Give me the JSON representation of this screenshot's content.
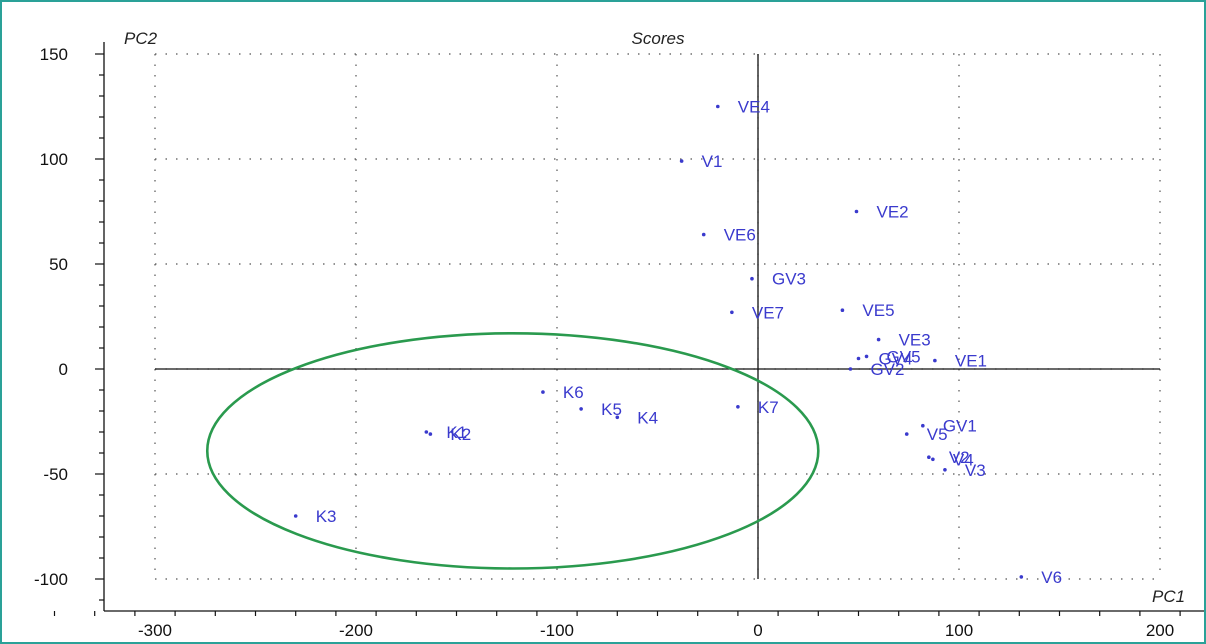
{
  "colors": {
    "points": "#3a3acd",
    "ellipse": "#2a9a4e",
    "frame": "#2aa198",
    "grid": "#555555",
    "axes": "#111111"
  },
  "chart_data": {
    "type": "scatter",
    "title": "Scores",
    "xlabel": "PC1",
    "ylabel": "PC2",
    "xlim": [
      -300,
      200
    ],
    "ylim": [
      -100,
      150
    ],
    "x_ticks": [
      -300,
      -200,
      -100,
      0,
      100,
      200
    ],
    "y_ticks": [
      150,
      100,
      50,
      0,
      -50,
      -100
    ],
    "grid": true,
    "points": [
      {
        "label": "VE4",
        "x": -20,
        "y": 125
      },
      {
        "label": "V1",
        "x": -38,
        "y": 99
      },
      {
        "label": "VE2",
        "x": 49,
        "y": 75
      },
      {
        "label": "VE6",
        "x": -27,
        "y": 64
      },
      {
        "label": "GV3",
        "x": -3,
        "y": 43
      },
      {
        "label": "VE7",
        "x": -13,
        "y": 27
      },
      {
        "label": "VE5",
        "x": 42,
        "y": 28
      },
      {
        "label": "VE3",
        "x": 60,
        "y": 14
      },
      {
        "label": "GV5",
        "x": 54,
        "y": 6
      },
      {
        "label": "GV4",
        "x": 50,
        "y": 5
      },
      {
        "label": "VE1",
        "x": 88,
        "y": 4
      },
      {
        "label": "GV2",
        "x": 46,
        "y": 0
      },
      {
        "label": "K6",
        "x": -107,
        "y": -11
      },
      {
        "label": "K5",
        "x": -88,
        "y": -19
      },
      {
        "label": "K4",
        "x": -70,
        "y": -23
      },
      {
        "label": "K7",
        "x": -10,
        "y": -18
      },
      {
        "label": "K1",
        "x": -165,
        "y": -30
      },
      {
        "label": "K2",
        "x": -163,
        "y": -31
      },
      {
        "label": "GV1",
        "x": 82,
        "y": -27
      },
      {
        "label": "V5",
        "x": 74,
        "y": -31
      },
      {
        "label": "V2",
        "x": 85,
        "y": -42
      },
      {
        "label": "V4",
        "x": 87,
        "y": -43
      },
      {
        "label": "V3",
        "x": 93,
        "y": -48
      },
      {
        "label": "K3",
        "x": -230,
        "y": -70
      },
      {
        "label": "V6",
        "x": 131,
        "y": -99
      }
    ],
    "annotations": [
      {
        "type": "ellipse",
        "cx": -122,
        "cy": -39,
        "rx": 152,
        "ry": 56
      }
    ]
  }
}
